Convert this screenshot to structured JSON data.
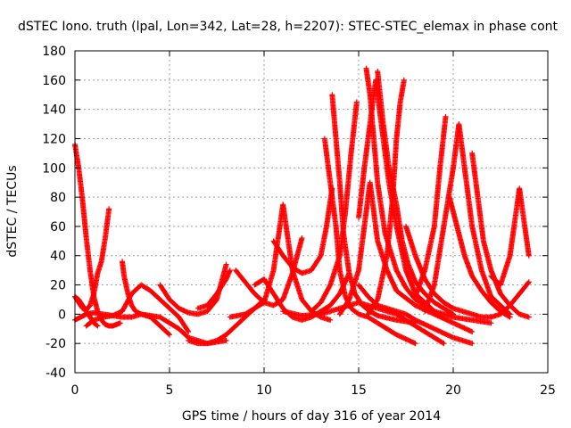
{
  "chart_data": {
    "type": "scatter",
    "title": "dSTEC Iono. truth (lpal, Lon=342, Lat=28, h=2207): STEC-STEC_elemax in phase cont",
    "xlabel": "GPS time / hours of day 316 of year 2014",
    "ylabel": "dSTEC  / TECUs",
    "xlim": [
      0,
      25
    ],
    "ylim": [
      -40,
      180
    ],
    "xticks": [
      "0",
      "5",
      "10",
      "15",
      "20",
      "25"
    ],
    "yticks": [
      "-40",
      "-20",
      "0",
      "20",
      "40",
      "60",
      "80",
      "100",
      "120",
      "140",
      "160",
      "180"
    ],
    "grid": true,
    "marker": "plus",
    "color": "#ff0000",
    "series": [
      {
        "x": [
          0.0,
          0.2,
          0.4,
          0.6,
          0.8,
          1.0,
          1.2,
          1.4,
          1.6,
          1.8,
          2.0,
          2.2,
          2.4
        ],
        "values": [
          116,
          100,
          78,
          52,
          30,
          12,
          2,
          -4,
          -7,
          -8,
          -8,
          -7,
          -6
        ]
      },
      {
        "x": [
          0.0,
          0.2,
          0.4,
          0.6,
          0.8,
          1.0,
          1.2,
          1.4,
          1.6,
          1.8
        ],
        "values": [
          12,
          8,
          4,
          3,
          6,
          14,
          28,
          36,
          52,
          72
        ]
      },
      {
        "x": [
          0.0,
          0.3,
          0.6,
          1.0,
          1.5,
          2.0,
          2.5,
          3.0,
          3.5,
          4.0,
          4.5,
          5.0
        ],
        "values": [
          -4,
          -2,
          0,
          1,
          0,
          -1,
          -2,
          -2,
          0,
          -2,
          -8,
          -14
        ]
      },
      {
        "x": [
          0.0,
          0.2,
          0.4,
          0.6,
          0.8,
          1.0,
          1.2
        ],
        "values": [
          12,
          10,
          6,
          2,
          -2,
          -6,
          -8
        ]
      },
      {
        "x": [
          0.6,
          1.0,
          1.5,
          2.0,
          2.5,
          3.0,
          3.5,
          4.0,
          4.5,
          5.0,
          5.5,
          6.0
        ],
        "values": [
          -8,
          -4,
          -2,
          -1,
          2,
          14,
          20,
          16,
          10,
          4,
          -2,
          -12
        ]
      },
      {
        "x": [
          2.5,
          2.6,
          2.8,
          3.0,
          3.2,
          3.5,
          4.0,
          4.5,
          5.0,
          5.5,
          6.0,
          7.0,
          8.0
        ],
        "values": [
          36,
          26,
          14,
          6,
          2,
          0,
          -1,
          -2,
          -6,
          -10,
          -16,
          -20,
          -18
        ]
      },
      {
        "x": [
          4.5,
          5.0,
          5.5,
          6.0,
          6.5,
          7.0,
          7.5,
          8.0
        ],
        "values": [
          20,
          10,
          4,
          1,
          0,
          2,
          10,
          34
        ]
      },
      {
        "x": [
          6.0,
          6.5,
          7.0,
          7.5,
          8.0,
          8.5,
          9.0,
          9.5,
          10.0
        ],
        "values": [
          -18,
          -20,
          -20,
          -18,
          -14,
          -8,
          -2,
          4,
          10
        ]
      },
      {
        "x": [
          6.5,
          7.0,
          7.5,
          8.0,
          8.2
        ],
        "values": [
          4,
          6,
          14,
          24,
          30
        ]
      },
      {
        "x": [
          8.2,
          9.0,
          10.0,
          10.5,
          11.0,
          11.5,
          12.0,
          12.5,
          13.0,
          13.5
        ],
        "values": [
          -2,
          0,
          8,
          30,
          75,
          30,
          10,
          2,
          -2,
          -4
        ]
      },
      {
        "x": [
          8.5,
          9.0,
          9.5,
          10.0,
          10.5,
          11.0,
          11.5,
          12.0
        ],
        "values": [
          30,
          22,
          14,
          8,
          6,
          10,
          28,
          52
        ]
      },
      {
        "x": [
          9.5,
          10.0,
          10.5,
          11.0,
          11.5,
          12.0,
          12.5,
          13.0,
          13.5,
          14.0,
          14.5
        ],
        "values": [
          20,
          24,
          14,
          4,
          -2,
          -4,
          -2,
          2,
          6,
          14,
          28
        ]
      },
      {
        "x": [
          10.5,
          11.0,
          11.5,
          12.0,
          12.5,
          13.0,
          13.3,
          13.6
        ],
        "values": [
          50,
          40,
          32,
          28,
          30,
          40,
          60,
          86
        ]
      },
      {
        "x": [
          11.0,
          12.0,
          13.0,
          14.0,
          15.0,
          16.0,
          17.0,
          18.0,
          19.0,
          19.5
        ],
        "values": [
          2,
          -1,
          0,
          4,
          8,
          4,
          0,
          -8,
          -16,
          -20
        ]
      },
      {
        "x": [
          13.2,
          13.5,
          13.8,
          14.0,
          14.3,
          14.6,
          15.0,
          15.5,
          16.0,
          17.0,
          18.0
        ],
        "values": [
          120,
          90,
          60,
          30,
          12,
          4,
          0,
          -2,
          -6,
          -14,
          -20
        ]
      },
      {
        "x": [
          13.6,
          13.8,
          14.0,
          14.2,
          14.5,
          14.8,
          15.2,
          15.6,
          16.0,
          17.0,
          18.0
        ],
        "values": [
          150,
          120,
          90,
          55,
          28,
          14,
          6,
          2,
          -1,
          -4,
          -6
        ]
      },
      {
        "x": [
          12.5,
          13.0,
          13.5,
          14.0,
          14.3,
          14.6,
          14.9
        ],
        "values": [
          2,
          8,
          20,
          40,
          70,
          110,
          145
        ]
      },
      {
        "x": [
          14.0,
          14.5,
          15.0,
          15.3,
          15.6,
          16.0,
          16.5,
          17.0,
          18.0,
          19.0,
          20.0,
          21.0
        ],
        "values": [
          0,
          10,
          30,
          60,
          90,
          50,
          30,
          16,
          6,
          0,
          -6,
          -12
        ]
      },
      {
        "x": [
          15.0,
          15.3,
          15.6,
          15.9,
          16.2,
          16.6,
          17.0,
          17.5,
          18.0,
          19.0
        ],
        "values": [
          66,
          100,
          130,
          160,
          130,
          90,
          60,
          30,
          14,
          2
        ]
      },
      {
        "x": [
          15.4,
          15.6,
          15.8,
          16.0,
          16.4,
          17.0,
          17.5,
          18.0,
          19.0,
          20.0,
          21.0,
          22.0
        ],
        "values": [
          168,
          150,
          120,
          90,
          55,
          30,
          18,
          10,
          2,
          -2,
          -4,
          -6
        ]
      },
      {
        "x": [
          16.0,
          16.3,
          16.6,
          17.0,
          17.3,
          17.6,
          18.0,
          18.5,
          19.0,
          19.5,
          20.0
        ],
        "values": [
          166,
          130,
          100,
          75,
          50,
          35,
          22,
          14,
          8,
          4,
          0
        ]
      },
      {
        "x": [
          15.5,
          16.0,
          16.5,
          16.8,
          17.0,
          17.2,
          17.4
        ],
        "values": [
          0,
          10,
          40,
          80,
          120,
          145,
          160
        ]
      },
      {
        "x": [
          15.0,
          15.5,
          16.0,
          16.5,
          17.0,
          17.5,
          18.0,
          19.0,
          20.0,
          21.0
        ],
        "values": [
          20,
          12,
          6,
          4,
          2,
          0,
          -4,
          -10,
          -16,
          -20
        ]
      },
      {
        "x": [
          17.5,
          18.0,
          18.5,
          19.0,
          19.5,
          20.0,
          20.5,
          21.0,
          21.5,
          22.0
        ],
        "values": [
          60,
          40,
          24,
          14,
          8,
          4,
          2,
          0,
          -2,
          -2
        ]
      },
      {
        "x": [
          18.0,
          18.5,
          19.0,
          19.3,
          19.6
        ],
        "values": [
          12,
          30,
          60,
          100,
          135
        ]
      },
      {
        "x": [
          18.5,
          19.0,
          19.5,
          20.0,
          20.3,
          20.6,
          21.0,
          21.5,
          22.0,
          23.0
        ],
        "values": [
          2,
          20,
          60,
          100,
          130,
          100,
          60,
          30,
          12,
          0
        ]
      },
      {
        "x": [
          19.8,
          20.2,
          20.6,
          21.0,
          21.5,
          22.0,
          22.5,
          23.0
        ],
        "values": [
          80,
          60,
          40,
          26,
          16,
          8,
          2,
          -2
        ]
      },
      {
        "x": [
          21.0,
          21.3,
          21.6,
          22.0,
          22.5,
          23.0,
          23.5,
          24.0
        ],
        "values": [
          110,
          80,
          50,
          30,
          14,
          6,
          0,
          -2
        ]
      },
      {
        "x": [
          22.0,
          22.5,
          23.0,
          23.5,
          24.0
        ],
        "values": [
          26,
          20,
          40,
          86,
          40
        ]
      },
      {
        "x": [
          22.0,
          22.5,
          23.0,
          23.5,
          24.0
        ],
        "values": [
          -2,
          0,
          6,
          14,
          22
        ]
      }
    ]
  }
}
